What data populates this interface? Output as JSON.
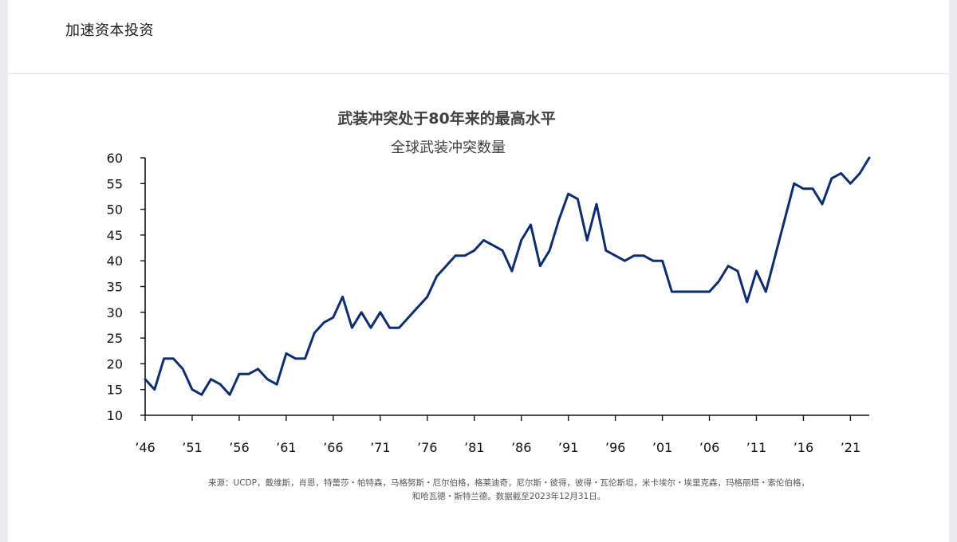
{
  "header": {
    "title": "加速资本投资"
  },
  "chart_data": {
    "type": "line",
    "title": "武装冲突处于80年来的最高水平",
    "subtitle": "全球武装冲突数量",
    "xlabel": "",
    "ylabel": "",
    "ylim": [
      10,
      60
    ],
    "yticks": [
      10,
      15,
      20,
      25,
      30,
      35,
      40,
      45,
      50,
      55,
      60
    ],
    "xlim": [
      1946,
      2023
    ],
    "xticks": [
      1946,
      1951,
      1956,
      1961,
      1966,
      1971,
      1976,
      1981,
      1986,
      1991,
      1996,
      2001,
      2006,
      2011,
      2016,
      2021
    ],
    "xtick_labels": [
      "’46",
      "’51",
      "’56",
      "’61",
      "’66",
      "’71",
      "’76",
      "’81",
      "’86",
      "’91",
      "’96",
      "’01",
      "’06",
      "’11",
      "’16",
      "’21"
    ],
    "grid": false,
    "line_color": "#0d2d6e",
    "series": [
      {
        "x": [
          1946,
          1947,
          1948,
          1949,
          1950,
          1951,
          1952,
          1953,
          1954,
          1955,
          1956,
          1957,
          1958,
          1959,
          1960,
          1961,
          1962,
          1963,
          1964,
          1965,
          1966,
          1967,
          1968,
          1969,
          1970,
          1971,
          1972,
          1973,
          1974,
          1975,
          1976,
          1977,
          1978,
          1979,
          1980,
          1981,
          1982,
          1983,
          1984,
          1985,
          1986,
          1987,
          1988,
          1989,
          1990,
          1991,
          1992,
          1993,
          1994,
          1995,
          1996,
          1997,
          1998,
          1999,
          2000,
          2001,
          2002,
          2003,
          2004,
          2005,
          2006,
          2007,
          2008,
          2009,
          2010,
          2011,
          2012,
          2013,
          2014,
          2015,
          2016,
          2017,
          2018,
          2019,
          2020,
          2021,
          2022,
          2023
        ],
        "values": [
          17,
          15,
          21,
          21,
          19,
          15,
          14,
          17,
          16,
          14,
          18,
          18,
          19,
          17,
          16,
          22,
          21,
          21,
          26,
          28,
          29,
          33,
          27,
          30,
          27,
          30,
          27,
          27,
          29,
          31,
          33,
          37,
          39,
          41,
          41,
          42,
          44,
          43,
          42,
          38,
          44,
          47,
          39,
          42,
          48,
          53,
          52,
          44,
          51,
          42,
          41,
          40,
          41,
          41,
          40,
          40,
          34,
          34,
          34,
          34,
          34,
          36,
          39,
          38,
          32,
          38,
          34,
          41,
          48,
          55,
          54,
          54,
          51,
          56,
          57,
          55,
          57,
          60
        ]
      }
    ],
    "source_note": [
      "来源：UCDP，戴维斯，肖恩，特蕾莎・帕特森，马格努斯・厄尔伯格，格莱迪奇，尼尔斯・彼得，彼得・瓦伦斯坦，米卡埃尔・埃里克森，玛格丽塔・索伦伯格，",
      "和哈瓦德・斯特兰德。数据截至2023年12月31日。"
    ]
  }
}
